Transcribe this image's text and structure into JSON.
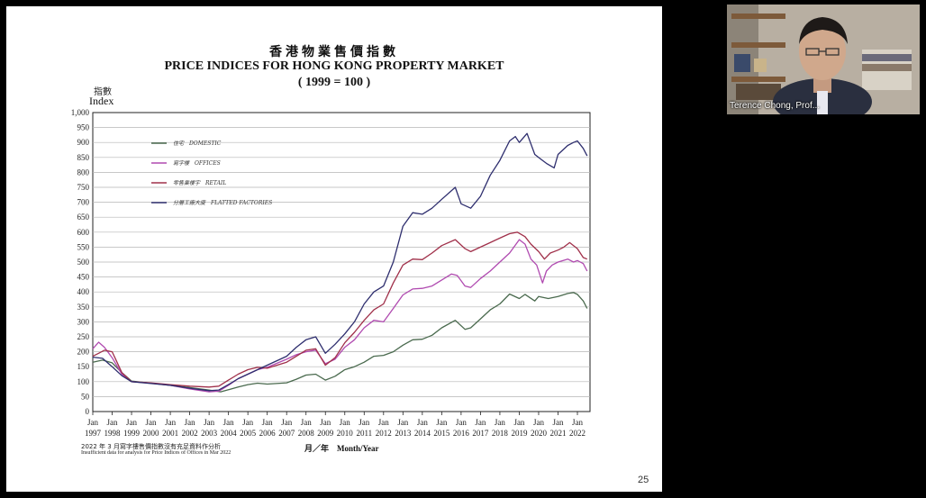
{
  "slide": {
    "title_zh": "香港物業售價指數",
    "title_en": "PRICE INDICES FOR HONG KONG PROPERTY MARKET",
    "base_note": "( 1999 = 100 )",
    "y_label_zh": "指數",
    "y_label_en": "Index",
    "x_label": "月／年　Month/Year",
    "note_zh": "2022 年 3 月寫字樓售價指數沒有充足資料作分析",
    "note_en": "Insufficient data for analysis for Price Indices of Offices in Mar 2022",
    "page_number": "25"
  },
  "video": {
    "participant_name": "Terence Chong, Prof..."
  },
  "chart_data": {
    "type": "line",
    "x_tick_labels": [
      "Jan 1997",
      "Jan 1998",
      "Jan 1999",
      "Jan 2000",
      "Jan 2001",
      "Jan 2002",
      "Jan 2003",
      "Jan 2004",
      "Jan 2005",
      "Jan 2006",
      "Jan 2007",
      "Jan 2008",
      "Jan 2009",
      "Jan 2010",
      "Jan 2011",
      "Jan 2012",
      "Jan 2013",
      "Jan 2014",
      "Jan 2015",
      "Jan 2016",
      "Jan 2017",
      "Jan 2018",
      "Jan 2019",
      "Jan 2020",
      "Jan 2021",
      "Jan 2022"
    ],
    "y_ticks": [
      "0",
      "50",
      "100",
      "150",
      "200",
      "250",
      "300",
      "350",
      "400",
      "450",
      "500",
      "550",
      "600",
      "650",
      "700",
      "750",
      "800",
      "850",
      "900",
      "950",
      "1,000"
    ],
    "ylim": [
      0,
      1000
    ],
    "grid": true,
    "legend_position": "top-left",
    "series": [
      {
        "name": "住宅　DOMESTIC",
        "color": "#4a6a4e",
        "points": [
          [
            1997.0,
            165
          ],
          [
            1997.5,
            172
          ],
          [
            1998.0,
            163
          ],
          [
            1998.5,
            130
          ],
          [
            1999.0,
            102
          ],
          [
            2000.0,
            95
          ],
          [
            2001.0,
            88
          ],
          [
            2002.0,
            80
          ],
          [
            2003.0,
            72
          ],
          [
            2003.6,
            66
          ],
          [
            2004.0,
            73
          ],
          [
            2004.5,
            82
          ],
          [
            2005.0,
            90
          ],
          [
            2005.5,
            95
          ],
          [
            2006.0,
            92
          ],
          [
            2007.0,
            96
          ],
          [
            2007.5,
            108
          ],
          [
            2008.0,
            122
          ],
          [
            2008.5,
            125
          ],
          [
            2009.0,
            105
          ],
          [
            2009.5,
            118
          ],
          [
            2010.0,
            140
          ],
          [
            2010.5,
            150
          ],
          [
            2011.0,
            165
          ],
          [
            2011.5,
            185
          ],
          [
            2012.0,
            188
          ],
          [
            2012.5,
            200
          ],
          [
            2013.0,
            222
          ],
          [
            2013.5,
            240
          ],
          [
            2014.0,
            242
          ],
          [
            2014.5,
            255
          ],
          [
            2015.0,
            280
          ],
          [
            2015.7,
            305
          ],
          [
            2016.2,
            275
          ],
          [
            2016.5,
            280
          ],
          [
            2017.0,
            310
          ],
          [
            2017.5,
            340
          ],
          [
            2018.0,
            360
          ],
          [
            2018.5,
            393
          ],
          [
            2019.0,
            378
          ],
          [
            2019.3,
            392
          ],
          [
            2019.8,
            370
          ],
          [
            2020.0,
            385
          ],
          [
            2020.5,
            378
          ],
          [
            2021.0,
            385
          ],
          [
            2021.5,
            395
          ],
          [
            2021.8,
            398
          ],
          [
            2022.0,
            392
          ],
          [
            2022.3,
            370
          ],
          [
            2022.5,
            345
          ]
        ]
      },
      {
        "name": "寫字樓　OFFICES",
        "color": "#b04ab0",
        "points": [
          [
            1997.0,
            210
          ],
          [
            1997.3,
            232
          ],
          [
            1997.6,
            215
          ],
          [
            1998.0,
            180
          ],
          [
            1998.5,
            125
          ],
          [
            1999.0,
            100
          ],
          [
            2000.0,
            95
          ],
          [
            2001.0,
            88
          ],
          [
            2002.0,
            76
          ],
          [
            2003.0,
            66
          ],
          [
            2003.5,
            68
          ],
          [
            2004.0,
            88
          ],
          [
            2004.5,
            110
          ],
          [
            2005.0,
            125
          ],
          [
            2005.5,
            140
          ],
          [
            2006.0,
            148
          ],
          [
            2007.0,
            175
          ],
          [
            2007.5,
            190
          ],
          [
            2008.0,
            200
          ],
          [
            2008.5,
            205
          ],
          [
            2009.0,
            160
          ],
          [
            2009.5,
            175
          ],
          [
            2010.0,
            215
          ],
          [
            2010.5,
            240
          ],
          [
            2011.0,
            280
          ],
          [
            2011.5,
            305
          ],
          [
            2012.0,
            300
          ],
          [
            2012.5,
            345
          ],
          [
            2013.0,
            390
          ],
          [
            2013.5,
            410
          ],
          [
            2014.0,
            412
          ],
          [
            2014.5,
            420
          ],
          [
            2015.0,
            440
          ],
          [
            2015.5,
            460
          ],
          [
            2015.8,
            455
          ],
          [
            2016.2,
            420
          ],
          [
            2016.5,
            415
          ],
          [
            2017.0,
            445
          ],
          [
            2017.5,
            470
          ],
          [
            2018.0,
            500
          ],
          [
            2018.5,
            530
          ],
          [
            2019.0,
            575
          ],
          [
            2019.3,
            560
          ],
          [
            2019.6,
            510
          ],
          [
            2019.9,
            490
          ],
          [
            2020.2,
            430
          ],
          [
            2020.4,
            470
          ],
          [
            2020.7,
            490
          ],
          [
            2021.0,
            500
          ],
          [
            2021.5,
            510
          ],
          [
            2021.8,
            500
          ],
          [
            2022.0,
            505
          ],
          [
            2022.3,
            495
          ],
          [
            2022.5,
            470
          ]
        ]
      },
      {
        "name": "零售業樓宇　RETAIL",
        "color": "#a0304a",
        "points": [
          [
            1997.0,
            185
          ],
          [
            1997.3,
            195
          ],
          [
            1997.6,
            205
          ],
          [
            1998.0,
            200
          ],
          [
            1998.5,
            130
          ],
          [
            1999.0,
            100
          ],
          [
            2000.0,
            96
          ],
          [
            2001.0,
            90
          ],
          [
            2002.0,
            85
          ],
          [
            2003.0,
            82
          ],
          [
            2003.5,
            85
          ],
          [
            2004.0,
            105
          ],
          [
            2004.5,
            125
          ],
          [
            2005.0,
            140
          ],
          [
            2005.5,
            148
          ],
          [
            2006.0,
            145
          ],
          [
            2007.0,
            165
          ],
          [
            2007.5,
            185
          ],
          [
            2008.0,
            205
          ],
          [
            2008.5,
            210
          ],
          [
            2009.0,
            155
          ],
          [
            2009.5,
            180
          ],
          [
            2010.0,
            230
          ],
          [
            2010.5,
            265
          ],
          [
            2011.0,
            305
          ],
          [
            2011.5,
            340
          ],
          [
            2012.0,
            360
          ],
          [
            2012.5,
            430
          ],
          [
            2013.0,
            490
          ],
          [
            2013.5,
            510
          ],
          [
            2014.0,
            508
          ],
          [
            2014.5,
            530
          ],
          [
            2015.0,
            555
          ],
          [
            2015.7,
            575
          ],
          [
            2016.2,
            545
          ],
          [
            2016.5,
            535
          ],
          [
            2017.0,
            550
          ],
          [
            2017.5,
            565
          ],
          [
            2018.0,
            580
          ],
          [
            2018.5,
            595
          ],
          [
            2018.9,
            600
          ],
          [
            2019.3,
            585
          ],
          [
            2019.6,
            560
          ],
          [
            2020.0,
            535
          ],
          [
            2020.3,
            510
          ],
          [
            2020.6,
            530
          ],
          [
            2021.0,
            540
          ],
          [
            2021.3,
            550
          ],
          [
            2021.6,
            565
          ],
          [
            2022.0,
            545
          ],
          [
            2022.3,
            515
          ],
          [
            2022.5,
            510
          ]
        ]
      },
      {
        "name": "分層工廠大廈　FLATTED FACTORIES",
        "color": "#2e2e6e",
        "points": [
          [
            1997.0,
            182
          ],
          [
            1997.5,
            178
          ],
          [
            1998.0,
            150
          ],
          [
            1998.5,
            120
          ],
          [
            1999.0,
            100
          ],
          [
            2000.0,
            94
          ],
          [
            2001.0,
            88
          ],
          [
            2002.0,
            78
          ],
          [
            2003.0,
            70
          ],
          [
            2003.5,
            72
          ],
          [
            2004.0,
            90
          ],
          [
            2004.5,
            110
          ],
          [
            2005.0,
            125
          ],
          [
            2005.5,
            140
          ],
          [
            2006.0,
            155
          ],
          [
            2007.0,
            185
          ],
          [
            2007.5,
            215
          ],
          [
            2008.0,
            240
          ],
          [
            2008.5,
            250
          ],
          [
            2009.0,
            195
          ],
          [
            2009.5,
            225
          ],
          [
            2010.0,
            260
          ],
          [
            2010.5,
            300
          ],
          [
            2011.0,
            360
          ],
          [
            2011.5,
            400
          ],
          [
            2012.0,
            420
          ],
          [
            2012.5,
            500
          ],
          [
            2013.0,
            620
          ],
          [
            2013.5,
            665
          ],
          [
            2014.0,
            660
          ],
          [
            2014.5,
            680
          ],
          [
            2015.0,
            710
          ],
          [
            2015.7,
            750
          ],
          [
            2016.0,
            695
          ],
          [
            2016.5,
            680
          ],
          [
            2017.0,
            720
          ],
          [
            2017.5,
            790
          ],
          [
            2018.0,
            840
          ],
          [
            2018.5,
            905
          ],
          [
            2018.8,
            920
          ],
          [
            2019.0,
            900
          ],
          [
            2019.4,
            930
          ],
          [
            2019.8,
            860
          ],
          [
            2020.1,
            845
          ],
          [
            2020.4,
            830
          ],
          [
            2020.8,
            815
          ],
          [
            2021.0,
            860
          ],
          [
            2021.5,
            890
          ],
          [
            2021.8,
            900
          ],
          [
            2022.0,
            905
          ],
          [
            2022.3,
            880
          ],
          [
            2022.5,
            855
          ]
        ]
      }
    ]
  }
}
